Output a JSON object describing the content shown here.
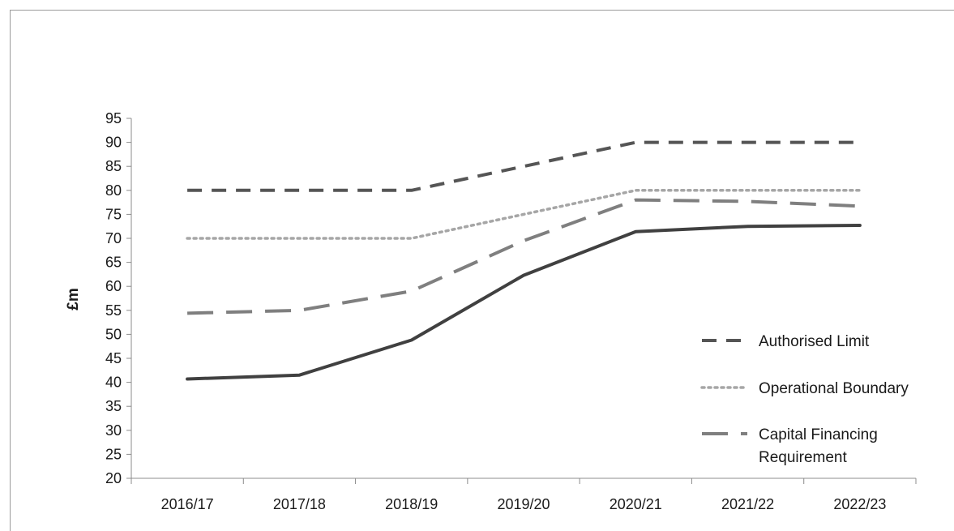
{
  "chart_data": {
    "type": "line",
    "title": "",
    "xlabel": "",
    "ylabel": "£m",
    "categories": [
      "2016/17",
      "2017/18",
      "2018/19",
      "2019/20",
      "2020/21",
      "2021/22",
      "2022/23"
    ],
    "ylim": [
      20,
      95
    ],
    "ytick_step": 5,
    "grid": false,
    "legend_position": "right",
    "series": [
      {
        "name": "Authorised Limit",
        "values": [
          80,
          80,
          80,
          85,
          90,
          90,
          90
        ],
        "style": "dashed",
        "color": "#555555"
      },
      {
        "name": "Operational Boundary",
        "values": [
          70,
          70,
          70,
          75,
          80,
          80,
          80
        ],
        "style": "dotted",
        "color": "#a6a6a6"
      },
      {
        "name": "Capital Financing Requirement",
        "legend_lines": [
          "Capital Financing",
          "Requirement"
        ],
        "values": [
          54.4,
          55,
          59,
          69.5,
          78,
          77.7,
          76.7
        ],
        "style": "long-dashed",
        "color": "#7f7f7f"
      },
      {
        "values": [
          40.7,
          41.5,
          48.8,
          62.3,
          71.4,
          72.5,
          72.7
        ],
        "style": "solid",
        "color": "#404040"
      }
    ]
  }
}
